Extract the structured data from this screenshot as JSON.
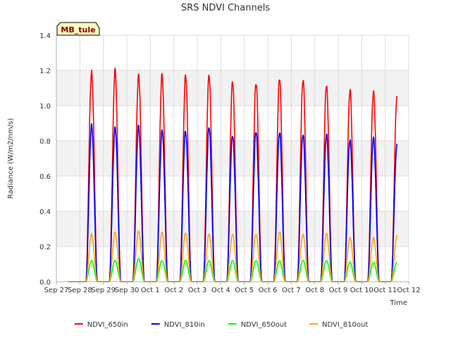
{
  "chart_data": {
    "type": "line",
    "title": "SRS NDVI Channels",
    "xlabel": "Time",
    "ylabel": "Radiance (W/m2/nm/s)",
    "ylim": [
      0,
      1.4
    ],
    "yticks": [
      "0.0",
      "0.2",
      "0.4",
      "0.6",
      "0.8",
      "1.0",
      "1.2",
      "1.4"
    ],
    "xlim": [
      "2023-09-27",
      "2023-10-12"
    ],
    "xticks": [
      "Sep 27",
      "Sep 28",
      "Sep 29",
      "Sep 30",
      "Oct 1",
      "Oct 2",
      "Oct 3",
      "Oct 4",
      "Oct 5",
      "Oct 6",
      "Oct 7",
      "Oct 8",
      "Oct 9",
      "Oct 10",
      "Oct 11",
      "Oct 12"
    ],
    "grid": true,
    "legend_position": "bottom",
    "badge": "MB_tule",
    "days": [
      "2023-09-28",
      "2023-09-29",
      "2023-09-30",
      "2023-10-01",
      "2023-10-02",
      "2023-10-03",
      "2023-10-04",
      "2023-10-05",
      "2023-10-06",
      "2023-10-07",
      "2023-10-08",
      "2023-10-09",
      "2023-10-10",
      "2023-10-11"
    ],
    "series": [
      {
        "name": "NDVI_650in",
        "color": "#ff0000",
        "daily_peak": [
          1.2,
          1.19,
          1.18,
          1.17,
          1.17,
          1.18,
          1.13,
          1.14,
          1.15,
          1.15,
          1.12,
          1.08,
          1.09,
          1.04
        ]
      },
      {
        "name": "NDVI_810in",
        "color": "#0000ff",
        "daily_peak": [
          0.88,
          0.88,
          0.88,
          0.86,
          0.86,
          0.87,
          0.84,
          0.85,
          0.85,
          0.84,
          0.83,
          0.81,
          0.81,
          0.78
        ]
      },
      {
        "name": "NDVI_650out",
        "color": "#00ff00",
        "daily_peak": [
          0.12,
          0.12,
          0.13,
          0.12,
          0.12,
          0.12,
          0.12,
          0.12,
          0.12,
          0.12,
          0.12,
          0.11,
          0.11,
          0.11
        ]
      },
      {
        "name": "NDVI_810out",
        "color": "#ffa500",
        "daily_peak": [
          0.27,
          0.28,
          0.29,
          0.28,
          0.28,
          0.27,
          0.27,
          0.27,
          0.28,
          0.27,
          0.27,
          0.25,
          0.25,
          0.26
        ]
      }
    ]
  }
}
